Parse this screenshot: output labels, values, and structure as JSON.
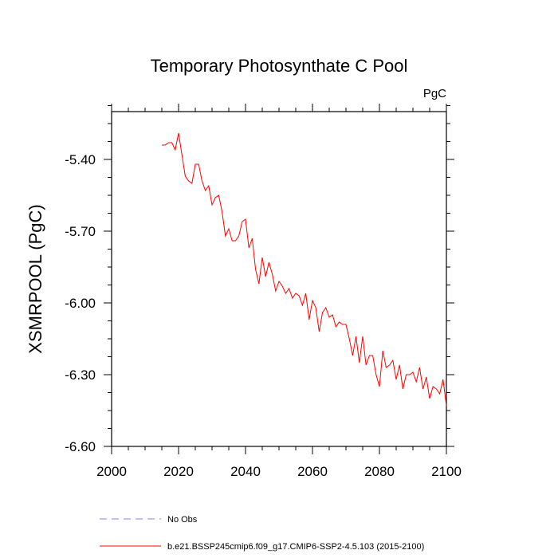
{
  "chart_data": {
    "type": "line",
    "title": "Temporary Photosynthate C Pool",
    "units_label": "PgC",
    "xlabel": "",
    "ylabel": "XSMRPOOL  (PgC)",
    "xlim": [
      2000,
      2100
    ],
    "ylim": [
      -6.6,
      -5.2
    ],
    "x_ticks": [
      2000,
      2020,
      2040,
      2060,
      2080,
      2100
    ],
    "x_tick_labels": [
      "2000",
      "2020",
      "2040",
      "2060",
      "2080",
      "2100"
    ],
    "y_ticks": [
      -6.6,
      -6.3,
      -6.0,
      -5.7,
      -5.4
    ],
    "y_tick_labels": [
      "-6.60",
      "-6.30",
      "-6.00",
      "-5.70",
      "-5.40"
    ],
    "grid": false,
    "legend_position": "bottom-left, below plot",
    "series": [
      {
        "name": "No Obs",
        "color": "#8080ff",
        "style": "dashed",
        "x": [],
        "values": []
      },
      {
        "name": "b.e21.BSSP245cmip6.f09_g17.CMIP6-SSP2-4.5.103 (2015-2100)",
        "color": "#ff0000",
        "style": "solid",
        "x": [
          2015,
          2016,
          2017,
          2018,
          2019,
          2020,
          2021,
          2022,
          2023,
          2024,
          2025,
          2026,
          2027,
          2028,
          2029,
          2030,
          2031,
          2032,
          2033,
          2034,
          2035,
          2036,
          2037,
          2038,
          2039,
          2040,
          2041,
          2042,
          2043,
          2044,
          2045,
          2046,
          2047,
          2048,
          2049,
          2050,
          2051,
          2052,
          2053,
          2054,
          2055,
          2056,
          2057,
          2058,
          2059,
          2060,
          2061,
          2062,
          2063,
          2064,
          2065,
          2066,
          2067,
          2068,
          2069,
          2070,
          2071,
          2072,
          2073,
          2074,
          2075,
          2076,
          2077,
          2078,
          2079,
          2080,
          2081,
          2082,
          2083,
          2084,
          2085,
          2086,
          2087,
          2088,
          2089,
          2090,
          2091,
          2092,
          2093,
          2094,
          2095,
          2096,
          2097,
          2098,
          2099,
          2100
        ],
        "values": [
          -5.34,
          -5.34,
          -5.33,
          -5.33,
          -5.36,
          -5.29,
          -5.38,
          -5.47,
          -5.49,
          -5.5,
          -5.42,
          -5.42,
          -5.49,
          -5.53,
          -5.51,
          -5.59,
          -5.56,
          -5.55,
          -5.62,
          -5.72,
          -5.69,
          -5.74,
          -5.74,
          -5.72,
          -5.66,
          -5.65,
          -5.77,
          -5.73,
          -5.86,
          -5.92,
          -5.81,
          -5.89,
          -5.83,
          -5.88,
          -5.95,
          -5.91,
          -5.93,
          -5.96,
          -5.94,
          -5.98,
          -5.96,
          -5.97,
          -6.01,
          -5.96,
          -6.07,
          -5.99,
          -6.02,
          -6.12,
          -6.04,
          -6.02,
          -6.06,
          -6.05,
          -6.1,
          -6.08,
          -6.09,
          -6.09,
          -6.15,
          -6.22,
          -6.14,
          -6.25,
          -6.14,
          -6.26,
          -6.22,
          -6.22,
          -6.3,
          -6.35,
          -6.2,
          -6.27,
          -6.26,
          -6.24,
          -6.32,
          -6.26,
          -6.36,
          -6.3,
          -6.3,
          -6.29,
          -6.33,
          -6.27,
          -6.36,
          -6.31,
          -6.4,
          -6.35,
          -6.36,
          -6.38,
          -6.32,
          -6.43
        ]
      }
    ]
  }
}
